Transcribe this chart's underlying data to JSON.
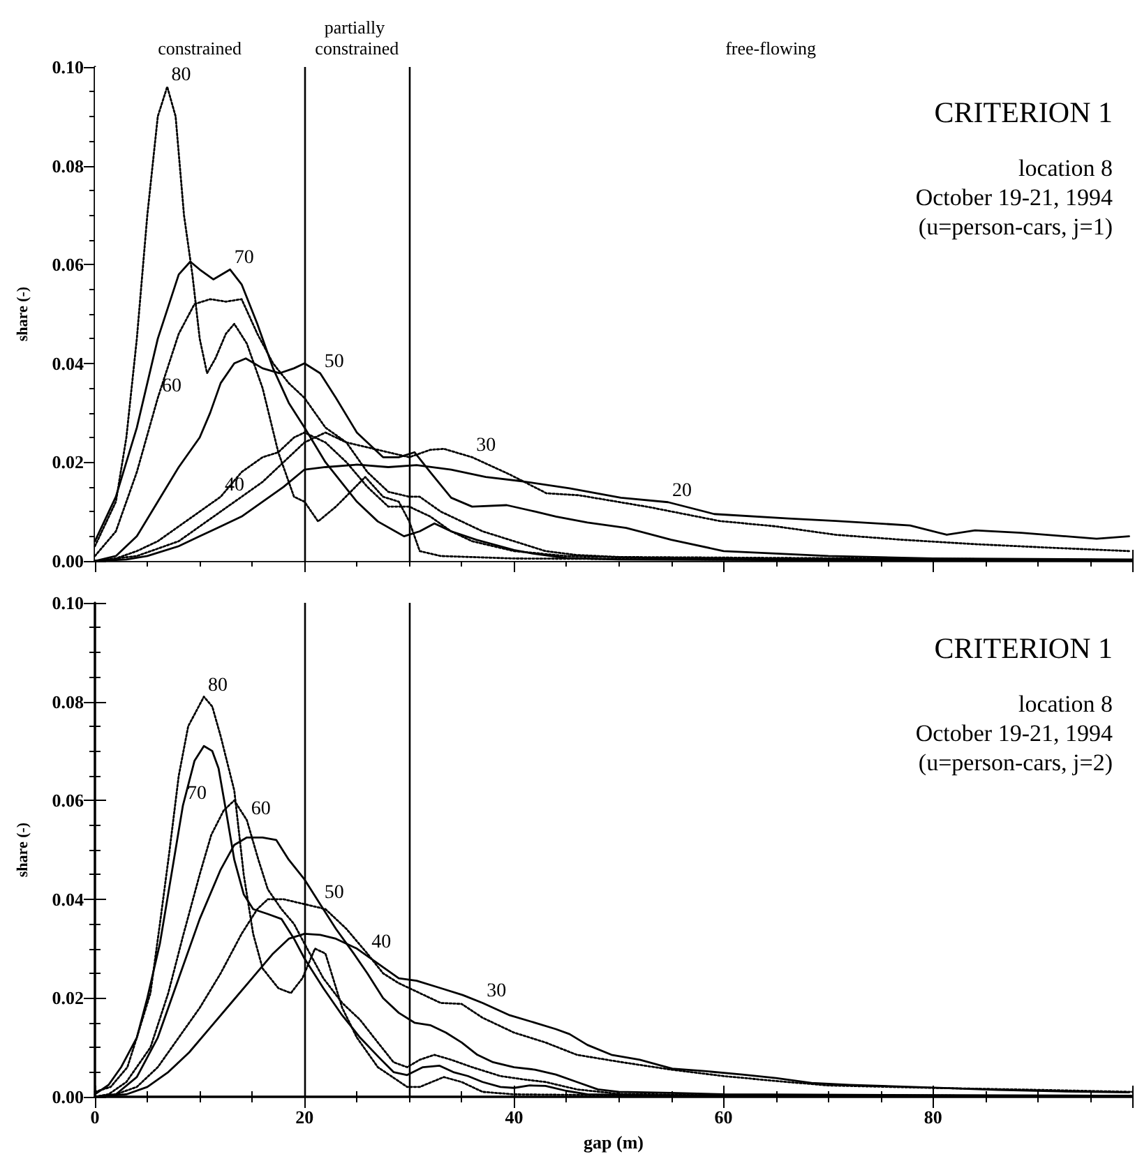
{
  "chart_data": [
    {
      "type": "line",
      "xlim": [
        0,
        99
      ],
      "xticks": [
        0,
        20,
        40,
        60,
        80
      ],
      "ylim": [
        0,
        0.1
      ],
      "yticks": [
        {
          "value": 0,
          "label": "0.00"
        },
        {
          "value": 0.02,
          "label": "0.02"
        },
        {
          "value": 0.04,
          "label": "0.04"
        },
        {
          "value": 0.06,
          "label": "0.06"
        },
        {
          "value": 0.08,
          "label": "0.08"
        },
        {
          "value": 0.1,
          "label": "0.10"
        }
      ],
      "ylabel": "share (-)",
      "tick_labels": "y",
      "marker": "none",
      "bands": [
        {
          "axis": "x",
          "from": 0,
          "to": 20,
          "label": "constrained",
          "color": "#ffffff"
        },
        {
          "axis": "x",
          "from": 20,
          "to": 30,
          "label": "partially constrained",
          "color": "#ffffff"
        },
        {
          "axis": "x",
          "from": 30,
          "to": 99,
          "label": "free-flowing",
          "color": "#ffffff"
        }
      ],
      "ref_lines": [
        {
          "axis": "x",
          "value": 20,
          "color": "#000000"
        },
        {
          "axis": "x",
          "value": 30,
          "color": "#000000"
        }
      ],
      "annotations": [
        "CRITERION 1",
        "location 8",
        "October 19-21, 1994",
        "(u=person-cars, j=1)"
      ],
      "series": [
        {
          "name": "80",
          "color": "#000000",
          "line_style": "dotted",
          "x": [
            0,
            2,
            3,
            4,
            5,
            6,
            6.9,
            7.7,
            8.5,
            9.3,
            10,
            10.7,
            11.5,
            12.5,
            13.3,
            14.5,
            16,
            17.5,
            19,
            20,
            21.3,
            23,
            25.8,
            27.5,
            29,
            30,
            31,
            33,
            40,
            60,
            99
          ],
          "values": [
            0.003,
            0.012,
            0.025,
            0.045,
            0.07,
            0.09,
            0.096,
            0.09,
            0.07,
            0.058,
            0.045,
            0.038,
            0.041,
            0.046,
            0.048,
            0.044,
            0.035,
            0.022,
            0.013,
            0.012,
            0.008,
            0.011,
            0.017,
            0.013,
            0.012,
            0.008,
            0.002,
            0.001,
            0.0005,
            0.0003,
            0.0002
          ]
        },
        {
          "name": "70",
          "color": "#000000",
          "line_style": "solid",
          "x": [
            0,
            2,
            4,
            6,
            8,
            9.1,
            10,
            11.3,
            12.9,
            14,
            15.5,
            17,
            18.5,
            20,
            22,
            25,
            27,
            29.5,
            31,
            32.4,
            34,
            36.4,
            40,
            41.8,
            45,
            50,
            99
          ],
          "values": [
            0.004,
            0.013,
            0.027,
            0.045,
            0.058,
            0.0606,
            0.059,
            0.057,
            0.059,
            0.056,
            0.048,
            0.039,
            0.032,
            0.027,
            0.02,
            0.012,
            0.008,
            0.005,
            0.006,
            0.0076,
            0.006,
            0.0043,
            0.0022,
            0.0015,
            0.0006,
            0.0003,
            0
          ]
        },
        {
          "name": "60",
          "color": "#000000",
          "line_style": "dotted",
          "x": [
            0,
            2,
            4,
            6,
            8,
            9.5,
            11,
            12.5,
            14,
            15.5,
            17,
            18.5,
            20,
            22,
            24,
            26,
            28,
            30,
            31,
            33,
            35,
            37,
            40,
            43,
            46,
            50,
            99
          ],
          "values": [
            0.001,
            0.006,
            0.018,
            0.033,
            0.046,
            0.052,
            0.053,
            0.0525,
            0.053,
            0.046,
            0.04,
            0.036,
            0.033,
            0.027,
            0.024,
            0.018,
            0.014,
            0.013,
            0.013,
            0.01,
            0.008,
            0.006,
            0.004,
            0.002,
            0.0012,
            0.0008,
            0.0002
          ]
        },
        {
          "name": "50",
          "color": "#000000",
          "line_style": "solid",
          "x": [
            0,
            2,
            4,
            6,
            8,
            10,
            11,
            12,
            13.3,
            14.4,
            16,
            17.6,
            19,
            20,
            21.5,
            23,
            25,
            27.5,
            29,
            30.5,
            32,
            34,
            36,
            39.3,
            42,
            44,
            47,
            50.7,
            55,
            60,
            65,
            70,
            80,
            99
          ],
          "values": [
            0,
            0.001,
            0.005,
            0.012,
            0.019,
            0.025,
            0.03,
            0.036,
            0.04,
            0.041,
            0.039,
            0.038,
            0.039,
            0.04,
            0.038,
            0.033,
            0.026,
            0.021,
            0.021,
            0.022,
            0.018,
            0.0128,
            0.011,
            0.0113,
            0.01,
            0.009,
            0.0078,
            0.0067,
            0.0043,
            0.002,
            0.0015,
            0.001,
            0.0005,
            0.0003
          ]
        },
        {
          "name": "40",
          "color": "#000000",
          "line_style": "dotted",
          "x": [
            0,
            2,
            4,
            6,
            8,
            10,
            12,
            14,
            16,
            17.5,
            19,
            20,
            22,
            24,
            26,
            28,
            30,
            32,
            34,
            36,
            38,
            40,
            45,
            55,
            99
          ],
          "values": [
            0,
            0.0005,
            0.002,
            0.004,
            0.007,
            0.01,
            0.013,
            0.018,
            0.021,
            0.022,
            0.025,
            0.026,
            0.024,
            0.02,
            0.015,
            0.011,
            0.011,
            0.009,
            0.006,
            0.004,
            0.003,
            0.002,
            0.001,
            0.0005,
            0.0002
          ]
        },
        {
          "name": "30",
          "color": "#000000",
          "line_style": "dotted",
          "x": [
            0,
            4,
            8,
            12,
            16,
            18,
            20,
            22,
            24,
            26,
            28,
            30,
            32,
            33.3,
            36,
            39.6,
            43.1,
            46.2,
            52.9,
            59.6,
            65,
            70.7,
            77,
            84,
            91,
            98.7
          ],
          "values": [
            0,
            0.001,
            0.004,
            0.01,
            0.016,
            0.02,
            0.024,
            0.026,
            0.024,
            0.023,
            0.022,
            0.021,
            0.0225,
            0.0227,
            0.021,
            0.0175,
            0.0137,
            0.0133,
            0.0109,
            0.0081,
            0.007,
            0.0053,
            0.0043,
            0.0034,
            0.0027,
            0.002
          ]
        },
        {
          "name": "20",
          "color": "#000000",
          "line_style": "solid",
          "x": [
            0,
            3,
            5,
            8,
            10,
            12,
            14,
            16,
            18,
            20,
            22,
            25,
            28,
            30.7,
            34,
            37.3,
            40.9,
            45.3,
            50.2,
            54.7,
            59.1,
            66.2,
            70.7,
            77.8,
            81.3,
            84,
            88.4,
            95.6,
            98.7
          ],
          "values": [
            0,
            0.0003,
            0.001,
            0.003,
            0.005,
            0.007,
            0.009,
            0.012,
            0.015,
            0.0185,
            0.019,
            0.0195,
            0.019,
            0.0194,
            0.0185,
            0.017,
            0.0161,
            0.0147,
            0.0128,
            0.0119,
            0.0095,
            0.0086,
            0.0081,
            0.0072,
            0.0053,
            0.0062,
            0.0057,
            0.0045,
            0.005
          ]
        }
      ]
    },
    {
      "type": "line",
      "xlim": [
        0,
        99
      ],
      "xticks": [
        0,
        20,
        40,
        60,
        80
      ],
      "ylim": [
        0,
        0.1
      ],
      "yticks": [
        {
          "value": 0,
          "label": "0.00"
        },
        {
          "value": 0.02,
          "label": "0.02"
        },
        {
          "value": 0.04,
          "label": "0.04"
        },
        {
          "value": 0.06,
          "label": "0.06"
        },
        {
          "value": 0.08,
          "label": "0.08"
        },
        {
          "value": 0.1,
          "label": "0.10"
        }
      ],
      "xlabel": "gap (m)",
      "ylabel": "share (-)",
      "marker": "none",
      "ref_lines": [
        {
          "axis": "x",
          "value": 20,
          "color": "#000000"
        },
        {
          "axis": "x",
          "value": 30,
          "color": "#000000"
        }
      ],
      "annotations": [
        "CRITERION 1",
        "location 8",
        "October 19-21, 1994",
        "(u=person-cars, j=2)"
      ],
      "series": [
        {
          "name": "80",
          "color": "#000000",
          "line_style": "dotted",
          "x": [
            0,
            1.5,
            3.1,
            4,
            5.3,
            6.2,
            7.1,
            8,
            8.9,
            10.4,
            11.2,
            12,
            13.3,
            14.2,
            15.1,
            16,
            17.5,
            18.7,
            19.8,
            21,
            22,
            23.6,
            25,
            27,
            29.8,
            31,
            33.3,
            35,
            37,
            40,
            50,
            99
          ],
          "values": [
            0.001,
            0.002,
            0.006,
            0.012,
            0.021,
            0.035,
            0.0495,
            0.065,
            0.075,
            0.081,
            0.079,
            0.073,
            0.062,
            0.045,
            0.033,
            0.026,
            0.022,
            0.021,
            0.024,
            0.03,
            0.029,
            0.018,
            0.012,
            0.006,
            0.002,
            0.002,
            0.004,
            0.003,
            0.001,
            0.0005,
            0.0003,
            0.0002
          ]
        },
        {
          "name": "70",
          "color": "#000000",
          "line_style": "solid",
          "x": [
            0,
            1.3,
            2.5,
            4,
            5,
            6.2,
            7.3,
            8.4,
            9.5,
            10.4,
            11.2,
            11.8,
            12.5,
            13.3,
            14.2,
            15.1,
            16.5,
            17.8,
            19,
            20,
            21.8,
            23.6,
            25.3,
            27.1,
            28.5,
            29.8,
            31.3,
            32.9,
            34.2,
            35.6,
            37,
            38.7,
            40,
            41.5,
            43,
            45,
            47,
            55,
            99
          ],
          "values": [
            0.0005,
            0.0024,
            0.006,
            0.012,
            0.02,
            0.031,
            0.045,
            0.059,
            0.068,
            0.071,
            0.07,
            0.0665,
            0.058,
            0.048,
            0.041,
            0.038,
            0.037,
            0.036,
            0.032,
            0.028,
            0.022,
            0.0165,
            0.012,
            0.008,
            0.005,
            0.0044,
            0.006,
            0.0063,
            0.005,
            0.0042,
            0.003,
            0.002,
            0.0018,
            0.0023,
            0.0022,
            0.0012,
            0.0005,
            0.0002,
            0.0001
          ]
        },
        {
          "name": "60",
          "color": "#000000",
          "line_style": "dotted",
          "x": [
            0,
            1.3,
            3,
            5.3,
            7,
            8.4,
            10,
            11.1,
            12.3,
            13.3,
            14.5,
            15.6,
            16.5,
            17.8,
            19,
            20,
            21.8,
            23.6,
            25.3,
            27,
            28.5,
            29.8,
            31,
            32.4,
            34,
            36,
            38.7,
            41,
            43,
            46,
            50,
            60,
            99
          ],
          "values": [
            0,
            0.0005,
            0.003,
            0.01,
            0.021,
            0.0325,
            0.045,
            0.053,
            0.058,
            0.06,
            0.056,
            0.048,
            0.042,
            0.038,
            0.035,
            0.031,
            0.024,
            0.019,
            0.0156,
            0.011,
            0.007,
            0.006,
            0.0075,
            0.0085,
            0.0075,
            0.006,
            0.0042,
            0.0035,
            0.003,
            0.0015,
            0.0006,
            0.0003,
            0.0002
          ]
        },
        {
          "name": "50",
          "color": "#000000",
          "line_style": "solid",
          "x": [
            0,
            2,
            4,
            6,
            8,
            10,
            12,
            13.3,
            14.5,
            16,
            17.3,
            18.5,
            20,
            21.5,
            23,
            24.7,
            26,
            27.5,
            29,
            30.5,
            32,
            33.5,
            35,
            36.5,
            38,
            40,
            42,
            44,
            46,
            48,
            50,
            55,
            60,
            99
          ],
          "values": [
            0,
            0.0005,
            0.004,
            0.012,
            0.024,
            0.036,
            0.046,
            0.051,
            0.0525,
            0.0525,
            0.052,
            0.048,
            0.044,
            0.039,
            0.034,
            0.029,
            0.025,
            0.02,
            0.017,
            0.015,
            0.0145,
            0.013,
            0.011,
            0.0085,
            0.007,
            0.006,
            0.0055,
            0.0045,
            0.003,
            0.0015,
            0.001,
            0.0008,
            0.0005,
            0.0002
          ]
        },
        {
          "name": "40",
          "color": "#000000",
          "line_style": "dotted",
          "x": [
            0,
            2,
            4,
            6,
            8,
            10,
            12,
            14,
            15.5,
            16.5,
            18,
            20,
            22,
            24,
            26,
            27.5,
            29,
            31,
            33,
            35,
            37,
            40,
            43,
            46,
            50,
            55,
            60,
            65,
            70,
            80,
            90,
            99
          ],
          "values": [
            0,
            0.0005,
            0.002,
            0.006,
            0.012,
            0.018,
            0.025,
            0.033,
            0.038,
            0.04,
            0.04,
            0.039,
            0.038,
            0.034,
            0.029,
            0.025,
            0.023,
            0.021,
            0.019,
            0.0188,
            0.016,
            0.013,
            0.011,
            0.0085,
            0.0071,
            0.0055,
            0.0042,
            0.0032,
            0.0023,
            0.0018,
            0.0014,
            0.001
          ]
        },
        {
          "name": "30",
          "color": "#000000",
          "line_style": "solid",
          "x": [
            0,
            3,
            5,
            7,
            9,
            11,
            13,
            15,
            17,
            18.5,
            20,
            21.5,
            23,
            25,
            27,
            29,
            30.7,
            33,
            35.1,
            37,
            39.6,
            42,
            44,
            45.3,
            47,
            49.3,
            52,
            55.1,
            58.2,
            61.8,
            65,
            68.4,
            72,
            79.6,
            86.2,
            92,
            98.7
          ],
          "values": [
            0,
            0.0005,
            0.002,
            0.005,
            0.009,
            0.014,
            0.019,
            0.024,
            0.029,
            0.032,
            0.033,
            0.0328,
            0.032,
            0.03,
            0.027,
            0.024,
            0.0235,
            0.022,
            0.0206,
            0.019,
            0.0165,
            0.015,
            0.0137,
            0.0127,
            0.0105,
            0.0085,
            0.0075,
            0.0057,
            0.0052,
            0.0045,
            0.0038,
            0.0028,
            0.0024,
            0.0019,
            0.0014,
            0.0011,
            0.0009
          ]
        }
      ]
    }
  ]
}
